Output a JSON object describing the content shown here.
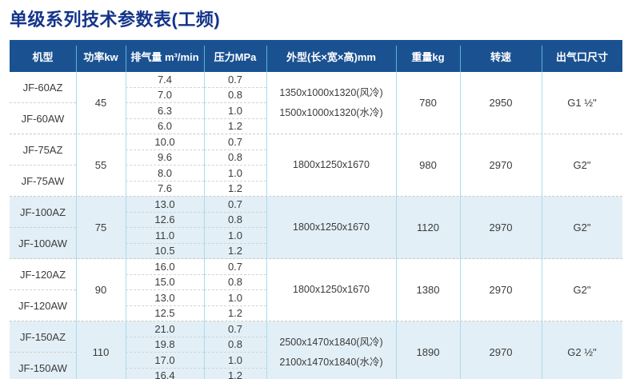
{
  "title": "单级系列技术参数表(工频)",
  "colors": {
    "title_text": "#14348a",
    "header_bg": "#1a5191",
    "header_text": "#ffffff",
    "highlight_block_bg": "#e2eff6",
    "column_divider": "#a9dcec",
    "row_dash": "#c9c9c9",
    "body_text": "#3b3b3b"
  },
  "table": {
    "headers": [
      "机型",
      "功率kw",
      "排气量 m³/min",
      "压力MPa",
      "外型(长×宽×高)mm",
      "重量kg",
      "转速",
      "出气口尺寸"
    ],
    "blocks": [
      {
        "models": [
          "JF-60AZ",
          "JF-60AW"
        ],
        "power": "45",
        "rows": [
          {
            "flow": "7.4",
            "pressure": "0.7"
          },
          {
            "flow": "7.0",
            "pressure": "0.8"
          },
          {
            "flow": "6.3",
            "pressure": "1.0"
          },
          {
            "flow": "6.0",
            "pressure": "1.2"
          }
        ],
        "dims": [
          "1350x1000x1320(风冷)",
          "1500x1000x1320(水冷)"
        ],
        "weight": "780",
        "speed": "2950",
        "outlet": "G1 ½\"",
        "highlight": false
      },
      {
        "models": [
          "JF-75AZ",
          "JF-75AW"
        ],
        "power": "55",
        "rows": [
          {
            "flow": "10.0",
            "pressure": "0.7"
          },
          {
            "flow": "9.6",
            "pressure": "0.8"
          },
          {
            "flow": "8.0",
            "pressure": "1.0"
          },
          {
            "flow": "7.6",
            "pressure": "1.2"
          }
        ],
        "dims": [
          "1800x1250x1670"
        ],
        "weight": "980",
        "speed": "2970",
        "outlet": "G2\"",
        "highlight": false
      },
      {
        "models": [
          "JF-100AZ",
          "JF-100AW"
        ],
        "power": "75",
        "rows": [
          {
            "flow": "13.0",
            "pressure": "0.7"
          },
          {
            "flow": "12.6",
            "pressure": "0.8"
          },
          {
            "flow": "11.0",
            "pressure": "1.0"
          },
          {
            "flow": "10.5",
            "pressure": "1.2"
          }
        ],
        "dims": [
          "1800x1250x1670"
        ],
        "weight": "1120",
        "speed": "2970",
        "outlet": "G2\"",
        "highlight": true
      },
      {
        "models": [
          "JF-120AZ",
          "JF-120AW"
        ],
        "power": "90",
        "rows": [
          {
            "flow": "16.0",
            "pressure": "0.7"
          },
          {
            "flow": "15.0",
            "pressure": "0.8"
          },
          {
            "flow": "13.0",
            "pressure": "1.0"
          },
          {
            "flow": "12.5",
            "pressure": "1.2"
          }
        ],
        "dims": [
          "1800x1250x1670"
        ],
        "weight": "1380",
        "speed": "2970",
        "outlet": "G2\"",
        "highlight": false
      },
      {
        "models": [
          "JF-150AZ",
          "JF-150AW"
        ],
        "power": "110",
        "rows": [
          {
            "flow": "21.0",
            "pressure": "0.7"
          },
          {
            "flow": "19.8",
            "pressure": "0.8"
          },
          {
            "flow": "17.0",
            "pressure": "1.0"
          },
          {
            "flow": "16.4",
            "pressure": "1.2"
          }
        ],
        "dims": [
          "2500x1470x1840(风冷)",
          "2100x1470x1840(水冷)"
        ],
        "weight": "1890",
        "speed": "2970",
        "outlet": "G2 ½\"",
        "highlight": true
      }
    ]
  }
}
